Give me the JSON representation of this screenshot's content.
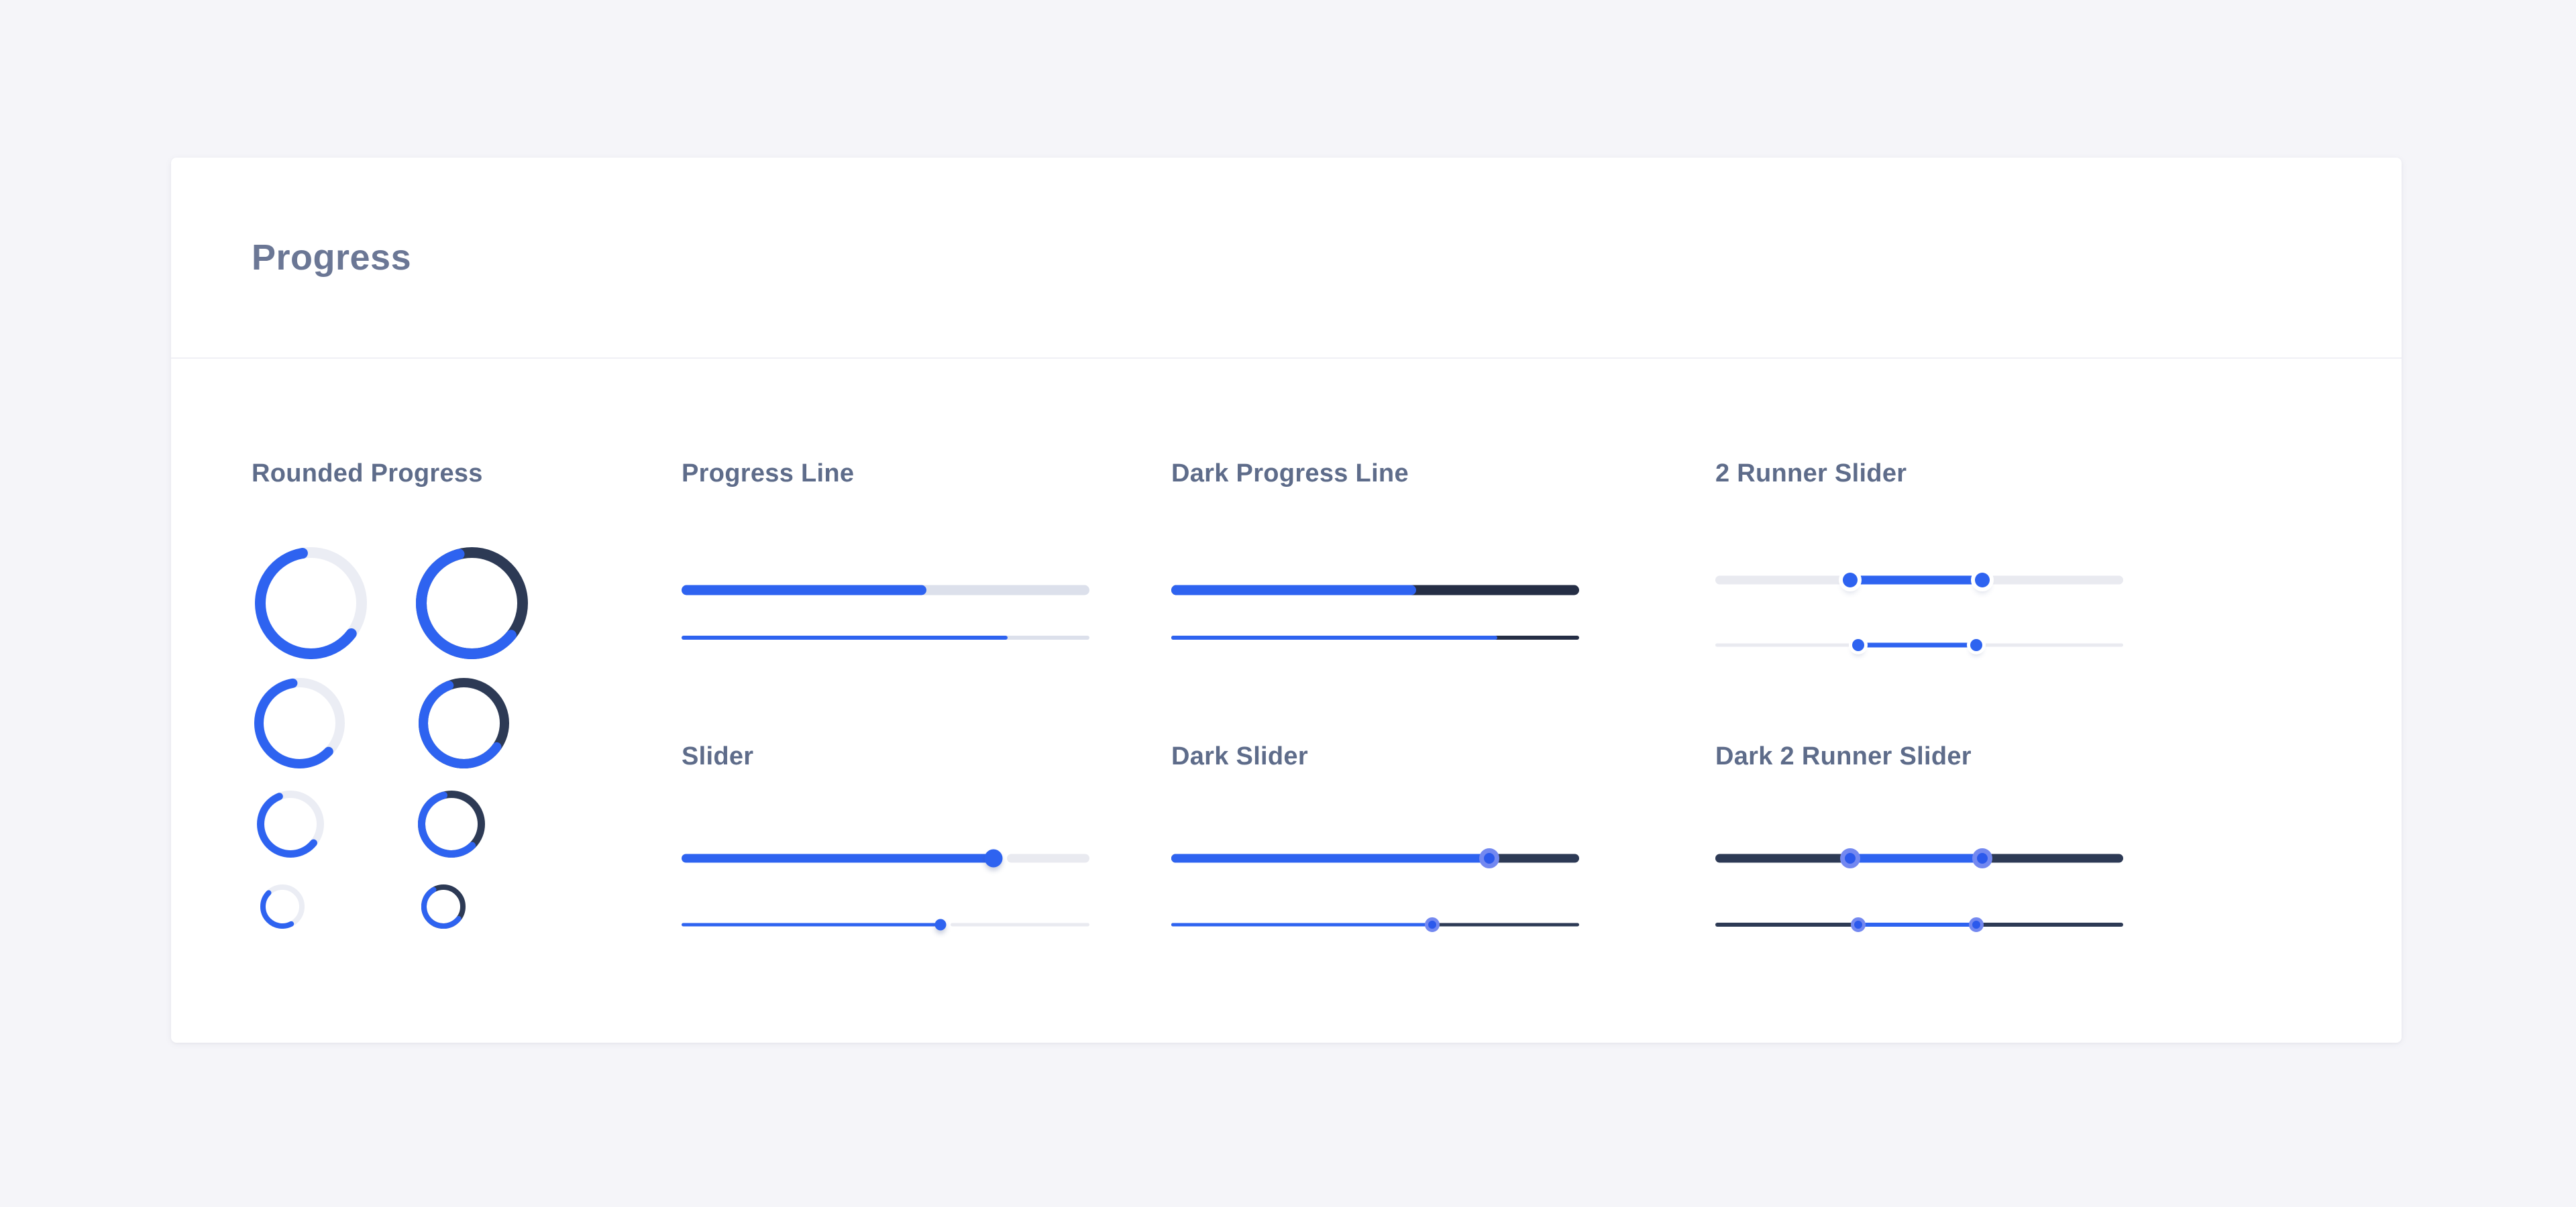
{
  "page": {
    "title": "Progress"
  },
  "colors": {
    "accent_blue": "#2e63f0",
    "accent_blue_ring": "#7388f0",
    "dark_navy_track": "#2d3a55",
    "dark_navy_line": "#252e45",
    "light_line_track": "#dce0eb",
    "light_slider_track": "#e9eaf0",
    "light_ring_track": "#ebedf4",
    "page_background": "#f5f5f9",
    "card_background": "#ffffff",
    "title_text": "#6b7795",
    "heading_text": "#5e6c8a"
  },
  "sections": {
    "rounded_progress": {
      "title": "Rounded Progress",
      "rings": [
        {
          "diameter": 167,
          "stroke": 16,
          "value": 62,
          "start_deg": -10,
          "track": "light"
        },
        {
          "diameter": 167,
          "stroke": 16,
          "value": 60,
          "start_deg": -15,
          "track": "dark"
        },
        {
          "diameter": 135,
          "stroke": 14,
          "value": 60,
          "start_deg": -10,
          "track": "light"
        },
        {
          "diameter": 135,
          "stroke": 14,
          "value": 59,
          "start_deg": -22,
          "track": "dark"
        },
        {
          "diameter": 100,
          "stroke": 11,
          "value": 58,
          "start_deg": -22,
          "track": "light"
        },
        {
          "diameter": 100,
          "stroke": 11,
          "value": 58,
          "start_deg": -15,
          "track": "dark"
        },
        {
          "diameter": 66,
          "stroke": 8,
          "value": 45,
          "start_deg": -45,
          "track": "light"
        },
        {
          "diameter": 66,
          "stroke": 8,
          "value": 56,
          "start_deg": -30,
          "track": "dark"
        }
      ]
    },
    "progress_line": {
      "title": "Progress Line",
      "theme": "light",
      "bars": [
        {
          "value": 60,
          "thickness": 15
        },
        {
          "value": 80,
          "thickness": 6
        }
      ]
    },
    "dark_progress_line": {
      "title": "Dark Progress Line",
      "theme": "dark",
      "bars": [
        {
          "value": 60,
          "thickness": 15
        },
        {
          "value": 80,
          "thickness": 6
        }
      ]
    },
    "two_runner_slider": {
      "title": "2 Runner Slider",
      "theme": "light",
      "sliders": [
        {
          "from": 33,
          "to": 65.5,
          "thickness": 13,
          "range_thickness": 13,
          "handle": 22
        },
        {
          "from": 35,
          "to": 64,
          "thickness": 5,
          "range_thickness": 7,
          "handle": 18
        }
      ]
    },
    "slider": {
      "title": "Slider",
      "theme": "light",
      "sliders": [
        {
          "value": 76.5,
          "thickness": 13,
          "handle": 27
        },
        {
          "value": 63.5,
          "thickness": 5,
          "handle": 17
        }
      ]
    },
    "dark_slider": {
      "title": "Dark Slider",
      "theme": "dark",
      "sliders": [
        {
          "value": 78,
          "thickness": 13,
          "handle": 30
        },
        {
          "value": 64,
          "thickness": 5,
          "handle": 22
        }
      ]
    },
    "dark_two_runner_slider": {
      "title": "Dark 2 Runner Slider",
      "theme": "dark",
      "sliders": [
        {
          "from": 33,
          "to": 65.5,
          "thickness": 13,
          "range_thickness": 13,
          "handle": 30
        },
        {
          "from": 35,
          "to": 64,
          "thickness": 6,
          "range_thickness": 6,
          "handle": 22
        }
      ]
    }
  }
}
